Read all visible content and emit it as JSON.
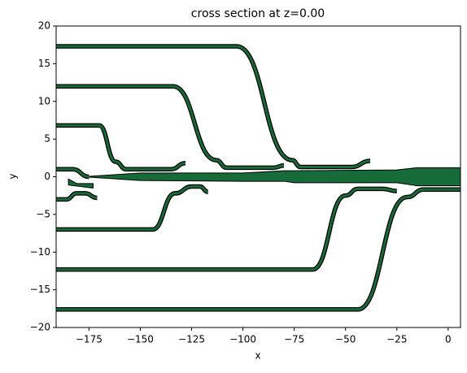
{
  "chart_data": {
    "type": "shapes",
    "title": "cross section at z=0.00",
    "x_label": "x",
    "y_label": "y",
    "color": "#176b38",
    "edge_color": "#000000",
    "xlim": [
      -191,
      6
    ],
    "ylim": [
      -20,
      20
    ],
    "xticks": [
      {
        "value": -175,
        "label": "−175"
      },
      {
        "value": -150,
        "label": "−150"
      },
      {
        "value": -125,
        "label": "−125"
      },
      {
        "value": -100,
        "label": "−100"
      },
      {
        "value": -75,
        "label": "−75"
      },
      {
        "value": -50,
        "label": "−50"
      },
      {
        "value": -25,
        "label": "−25"
      },
      0
    ],
    "yticks": [
      {
        "value": -20,
        "label": "−20"
      },
      {
        "value": -15,
        "label": "−15"
      },
      {
        "value": -10,
        "label": "−10"
      },
      {
        "value": -5,
        "label": "−5"
      },
      0,
      5,
      10,
      15,
      20
    ],
    "waveguides": [
      {
        "x": [
          -191,
          -103,
          -76,
          -72,
          -47,
          -38
        ],
        "y": [
          17.3,
          17.3,
          2.2,
          1.3,
          1.3,
          2.1
        ]
      },
      {
        "x": [
          -191,
          -134,
          -113,
          -108,
          -85,
          -80
        ],
        "y": [
          12,
          12,
          2.2,
          1.2,
          1.2,
          1.5
        ]
      },
      {
        "x": [
          -191,
          -170,
          -162,
          -157,
          -135,
          -128
        ],
        "y": [
          6.8,
          6.8,
          2,
          1,
          1,
          1.8
        ]
      },
      {
        "x": [
          -191,
          -183,
          -175
        ],
        "y": [
          1,
          1,
          0
        ]
      },
      {
        "x": [
          -191,
          -186,
          -181,
          -177,
          -171
        ],
        "y": [
          -3,
          -3,
          -2.2,
          -2.2,
          -2.8
        ]
      },
      {
        "x": [
          -191,
          -144,
          -133,
          -125,
          -121,
          -117
        ],
        "y": [
          -7,
          -7,
          -2.2,
          -1.3,
          -1.3,
          -2
        ]
      },
      {
        "x": [
          -191,
          -66,
          -50,
          -44,
          -32,
          -25
        ],
        "y": [
          -12.3,
          -12.3,
          -2.5,
          -1.6,
          -1.6,
          -1.9
        ]
      },
      {
        "x": [
          -191,
          -44,
          -20,
          -12,
          6
        ],
        "y": [
          -17.6,
          -17.6,
          -2.7,
          -1.7,
          -1.7
        ]
      }
    ],
    "polygons": [
      {
        "x": [
          -178,
          -150,
          -100,
          -80,
          -75,
          -25,
          -15,
          6,
          6,
          -15,
          -25,
          -75,
          -80,
          -100,
          -150,
          -178
        ],
        "y": [
          0,
          0.5,
          0.5,
          0.8,
          0.8,
          0.9,
          1.2,
          1.2,
          -1.2,
          -1.2,
          -0.8,
          -0.8,
          -0.6,
          -0.6,
          -0.5,
          0
        ]
      },
      {
        "x": [
          -185,
          -181,
          -173,
          -173,
          -185
        ],
        "y": [
          -0.3,
          -0.9,
          -0.9,
          -1.5,
          -1.1
        ]
      }
    ]
  }
}
